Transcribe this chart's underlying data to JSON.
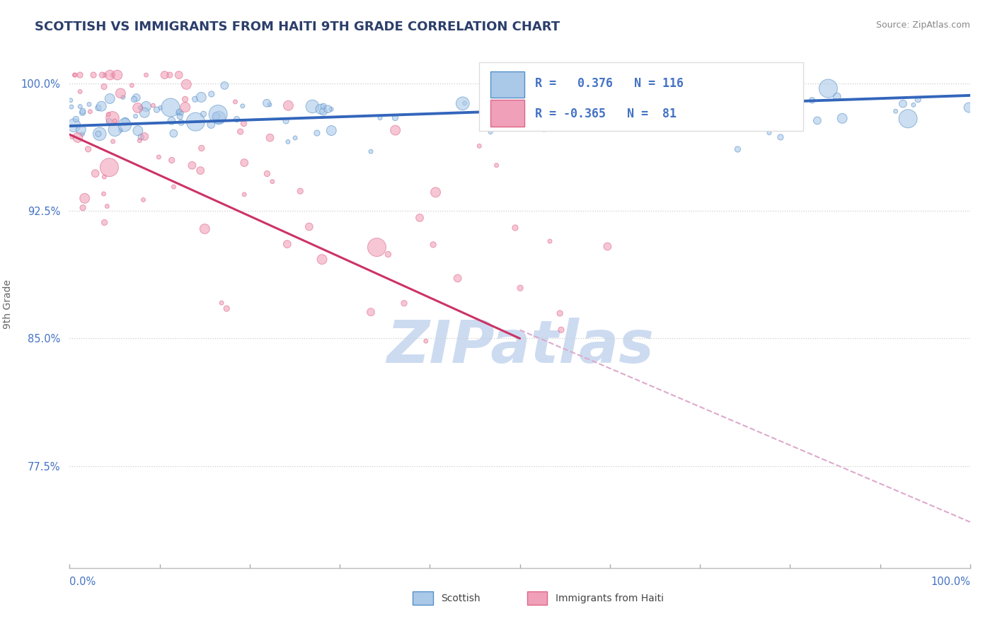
{
  "title": "SCOTTISH VS IMMIGRANTS FROM HAITI 9TH GRADE CORRELATION CHART",
  "source": "Source: ZipAtlas.com",
  "ylabel": "9th Grade",
  "ytick_labels": [
    "77.5%",
    "85.0%",
    "92.5%",
    "100.0%"
  ],
  "ytick_values": [
    0.775,
    0.85,
    0.925,
    1.0
  ],
  "xrange": [
    0.0,
    1.0
  ],
  "yrange": [
    0.715,
    1.025
  ],
  "legend_scottish_label": "Scottish",
  "legend_haiti_label": "Immigrants from Haiti",
  "scottish_R": 0.376,
  "scottish_N": 116,
  "haiti_R": -0.365,
  "haiti_N": 81,
  "blue_scatter_color": "#aac8e8",
  "blue_edge_color": "#5590c8",
  "blue_line_color": "#3366bb",
  "pink_scatter_color": "#f0a0b8",
  "pink_edge_color": "#dd6688",
  "pink_line_color": "#cc3366",
  "dashed_line_color": "#ddaacc",
  "ytick_color": "#4472c4",
  "title_color": "#2c3e6b",
  "source_color": "#888888",
  "background_color": "#ffffff",
  "watermark_text": "ZIPatlas",
  "watermark_color": "#c8d8f0",
  "title_fontsize": 13,
  "legend_fontsize": 12,
  "tick_fontsize": 10.5,
  "ylabel_fontsize": 10,
  "source_fontsize": 9,
  "blue_line_start_y": 0.975,
  "blue_line_end_y": 0.993,
  "pink_line_start_y": 0.97,
  "pink_line_end_y": 0.74,
  "dash_line_start_x": 0.5,
  "dash_line_start_y": 0.855,
  "dash_line_end_x": 1.0,
  "dash_line_end_y": 0.742
}
